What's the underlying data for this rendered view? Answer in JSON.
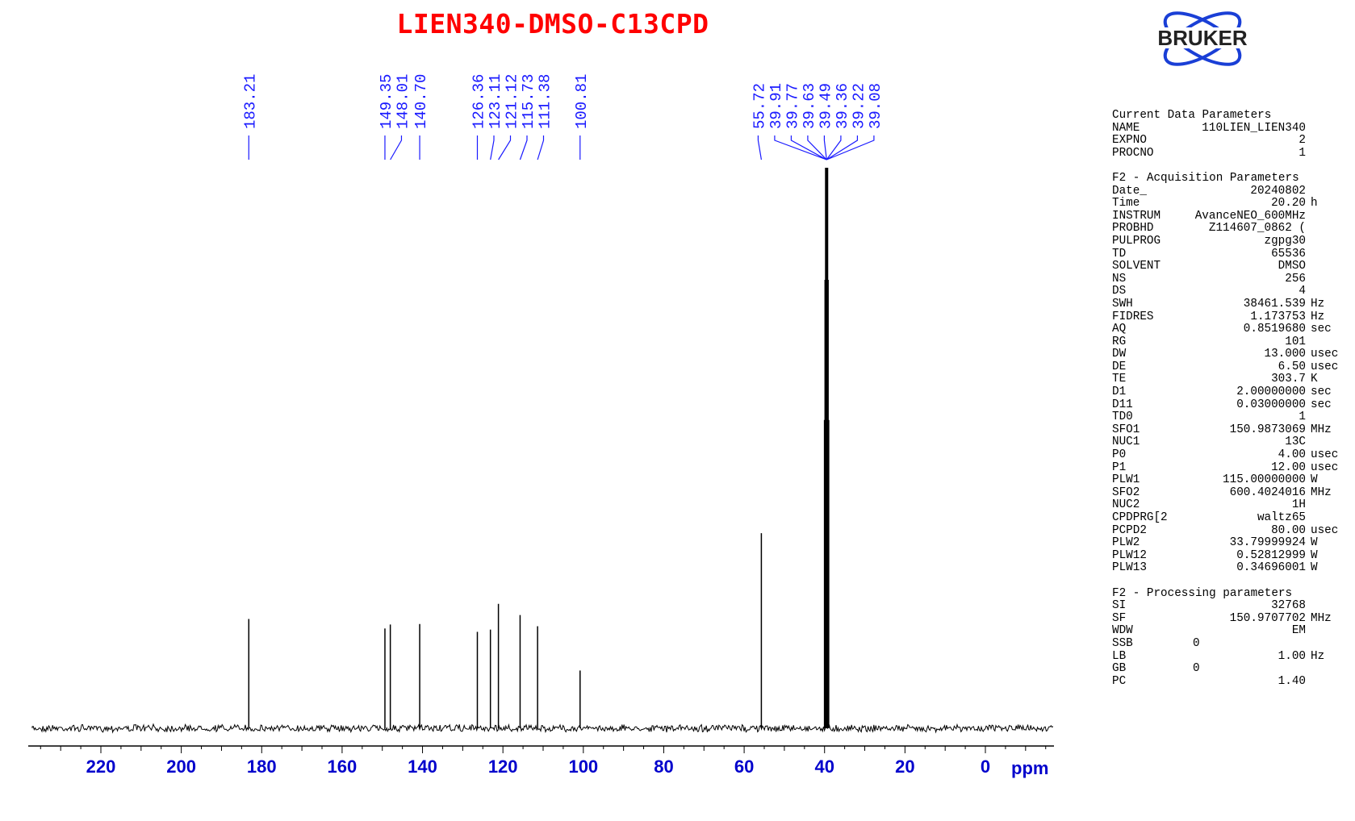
{
  "title": "LIEN340-DMSO-C13CPD",
  "logo_text": "BRUKER",
  "colors": {
    "title": "#ff0000",
    "peak_labels": "#1a1aff",
    "axis": "#0000cc",
    "spectrum": "#000000",
    "logo": "#1a3fd6"
  },
  "chart_data": {
    "type": "line",
    "xlabel": "ppm",
    "x_reversed": true,
    "xlim": [
      239,
      -17
    ],
    "x_ticks": [
      220,
      200,
      180,
      160,
      140,
      120,
      100,
      80,
      60,
      40,
      20,
      0
    ],
    "x_tick_labels": [
      "220",
      "200",
      "180",
      "160",
      "140",
      "120",
      "100",
      "80",
      "60",
      "40",
      "20",
      "0"
    ],
    "peaks": [
      {
        "ppm": 183.21,
        "label": "183.21",
        "height": 0.195
      },
      {
        "ppm": 149.35,
        "label": "149.35",
        "height": 0.178
      },
      {
        "ppm": 148.01,
        "label": "148.01",
        "height": 0.185
      },
      {
        "ppm": 140.7,
        "label": "140.70",
        "height": 0.186
      },
      {
        "ppm": 126.36,
        "label": "126.36",
        "height": 0.172
      },
      {
        "ppm": 123.11,
        "label": "123.11",
        "height": 0.176
      },
      {
        "ppm": 121.12,
        "label": "121.12",
        "height": 0.222
      },
      {
        "ppm": 115.73,
        "label": "115.73",
        "height": 0.202
      },
      {
        "ppm": 111.38,
        "label": "111.38",
        "height": 0.182
      },
      {
        "ppm": 100.81,
        "label": "100.81",
        "height": 0.103
      },
      {
        "ppm": 55.72,
        "label": "55.72",
        "height": 0.348
      },
      {
        "ppm": 39.91,
        "label": "39.91",
        "height": 0.36
      },
      {
        "ppm": 39.77,
        "label": "39.77",
        "height": 0.55
      },
      {
        "ppm": 39.63,
        "label": "39.63",
        "height": 0.8
      },
      {
        "ppm": 39.49,
        "label": "39.49",
        "height": 1.0
      },
      {
        "ppm": 39.36,
        "label": "39.36",
        "height": 0.8
      },
      {
        "ppm": 39.22,
        "label": "39.22",
        "height": 0.55
      },
      {
        "ppm": 39.08,
        "label": "39.08",
        "height": 0.36
      }
    ]
  },
  "parameters": {
    "current": {
      "title": "Current Data Parameters",
      "rows": [
        {
          "k": "NAME",
          "v": "110LIEN_LIEN340",
          "u": ""
        },
        {
          "k": "EXPNO",
          "v": "2",
          "u": ""
        },
        {
          "k": "PROCNO",
          "v": "1",
          "u": ""
        }
      ]
    },
    "acquisition": {
      "title": "F2 - Acquisition Parameters",
      "rows": [
        {
          "k": "Date_",
          "v": "20240802",
          "u": ""
        },
        {
          "k": "Time",
          "v": "20.20",
          "u": "h"
        },
        {
          "k": "INSTRUM",
          "v": "AvanceNEO_600MHz",
          "u": ""
        },
        {
          "k": "PROBHD",
          "v": "Z114607_0862 (",
          "u": ""
        },
        {
          "k": "PULPROG",
          "v": "zgpg30",
          "u": ""
        },
        {
          "k": "TD",
          "v": "65536",
          "u": ""
        },
        {
          "k": "SOLVENT",
          "v": "DMSO",
          "u": ""
        },
        {
          "k": "NS",
          "v": "256",
          "u": ""
        },
        {
          "k": "DS",
          "v": "4",
          "u": ""
        },
        {
          "k": "SWH",
          "v": "38461.539",
          "u": "Hz"
        },
        {
          "k": "FIDRES",
          "v": "1.173753",
          "u": "Hz"
        },
        {
          "k": "AQ",
          "v": "0.8519680",
          "u": "sec"
        },
        {
          "k": "RG",
          "v": "101",
          "u": ""
        },
        {
          "k": "DW",
          "v": "13.000",
          "u": "usec"
        },
        {
          "k": "DE",
          "v": "6.50",
          "u": "usec"
        },
        {
          "k": "TE",
          "v": "303.7",
          "u": "K"
        },
        {
          "k": "D1",
          "v": "2.00000000",
          "u": "sec"
        },
        {
          "k": "D11",
          "v": "0.03000000",
          "u": "sec"
        },
        {
          "k": "TD0",
          "v": "1",
          "u": ""
        },
        {
          "k": "SFO1",
          "v": "150.9873069",
          "u": "MHz"
        },
        {
          "k": "NUC1",
          "v": "13C",
          "u": ""
        },
        {
          "k": "P0",
          "v": "4.00",
          "u": "usec"
        },
        {
          "k": "P1",
          "v": "12.00",
          "u": "usec"
        },
        {
          "k": "PLW1",
          "v": "115.00000000",
          "u": "W"
        },
        {
          "k": "SFO2",
          "v": "600.4024016",
          "u": "MHz"
        },
        {
          "k": "NUC2",
          "v": "1H",
          "u": ""
        },
        {
          "k": "CPDPRG[2",
          "v": "waltz65",
          "u": ""
        },
        {
          "k": "PCPD2",
          "v": "80.00",
          "u": "usec"
        },
        {
          "k": "PLW2",
          "v": "33.79999924",
          "u": "W"
        },
        {
          "k": "PLW12",
          "v": "0.52812999",
          "u": "W"
        },
        {
          "k": "PLW13",
          "v": "0.34696001",
          "u": "W"
        }
      ]
    },
    "processing": {
      "title": "F2 - Processing parameters",
      "rows": [
        {
          "k": "SI",
          "v": "32768",
          "u": ""
        },
        {
          "k": "SF",
          "v": "150.9707702",
          "u": "MHz"
        },
        {
          "k": "WDW",
          "v": "EM",
          "u": ""
        },
        {
          "k": "SSB",
          "v": "0",
          "u": "",
          "left": true
        },
        {
          "k": "LB",
          "v": "1.00",
          "u": "Hz"
        },
        {
          "k": "GB",
          "v": "0",
          "u": "",
          "left": true
        },
        {
          "k": "PC",
          "v": "1.40",
          "u": ""
        }
      ]
    }
  }
}
